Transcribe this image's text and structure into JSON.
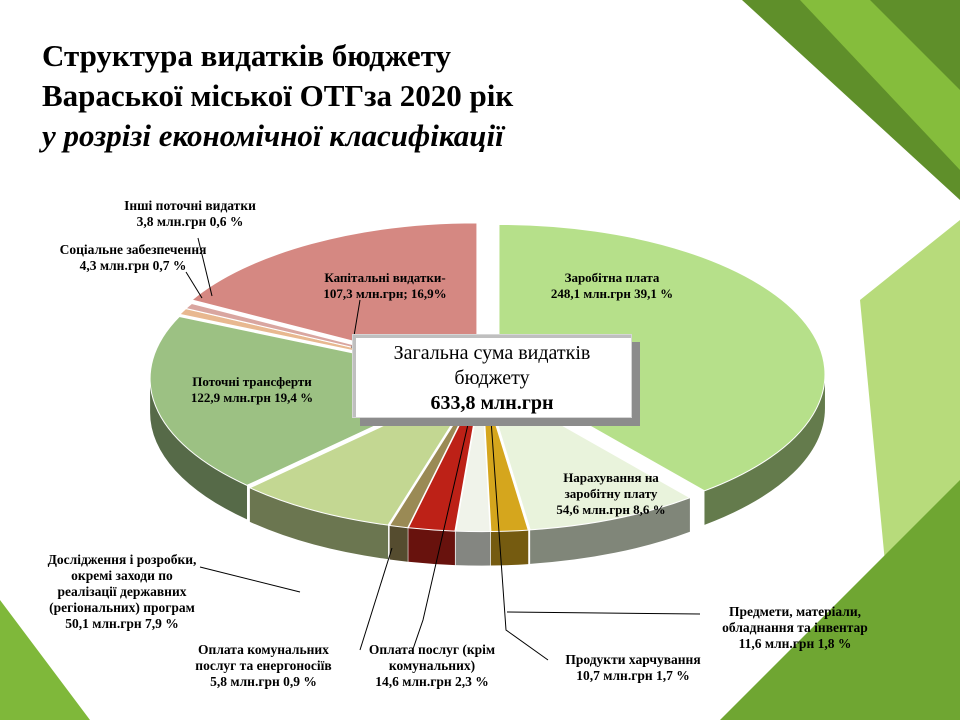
{
  "title": {
    "line1": "Структура  видатків  бюджету",
    "line2": "Вараської міської ОТГза 2020 рік",
    "line3": "у розрізі економічної класифікації"
  },
  "center": {
    "line1": "Загальна сума видатків",
    "line2": "бюджету",
    "value": "633,8 млн.грн"
  },
  "chart_data": {
    "type": "pie",
    "total": 633.8,
    "unit": "млн.грн",
    "slices": [
      {
        "name": "Заробітна  плата",
        "value": 248.1,
        "percent": 39.1,
        "color": "#b6e08a",
        "label_lines": [
          "Заробітна  плата",
          "248,1 млн.грн  39,1 %"
        ]
      },
      {
        "name": "Нарахування на заробітну плату",
        "value": 54.6,
        "percent": 8.6,
        "color": "#e9f3dc",
        "label_lines": [
          "Нарахування на",
          "заробітну плату",
          "54,6 млн.грн   8,6 %"
        ]
      },
      {
        "name": "Предмети, матеріали, обладнання та інвентар",
        "value": 11.6,
        "percent": 1.8,
        "color": "#d5a61d",
        "label_lines": [
          "Предмети, матеріали,",
          "обладнання та інвентар",
          "11,6 млн.грн  1,8 %"
        ]
      },
      {
        "name": "Продукти харчування",
        "value": 10.7,
        "percent": 1.7,
        "color": "#f0f3ea",
        "label_lines": [
          "Продукти харчування",
          "10,7 млн.грн 1,7 %"
        ]
      },
      {
        "name": "Оплата послуг (крім комунальних)",
        "value": 14.6,
        "percent": 2.3,
        "color": "#bd2117",
        "label_lines": [
          "Оплата послуг (крім",
          "комунальних)",
          "14,6 млн.грн 2,3 %"
        ]
      },
      {
        "name": "Оплата комунальних послуг та енергоносіїв",
        "value": 5.8,
        "percent": 0.9,
        "color": "#9a8a55",
        "label_lines": [
          "Оплата комунальних",
          "послуг та енергоносіїв",
          "5,8 млн.грн 0,9 %"
        ]
      },
      {
        "name": "Дослідження і розробки, окремі заходи по реалізації державних (регіональних) програм",
        "value": 50.1,
        "percent": 7.9,
        "color": "#c3d792",
        "label_lines": [
          "Дослідження і розробки,",
          "окремі заходи по",
          "реалізації  державних",
          "(регіональних) програм",
          "50,1 млн.грн 7,9 %"
        ]
      },
      {
        "name": "Поточні трансферти",
        "value": 122.9,
        "percent": 19.4,
        "color": "#9cc183",
        "label_lines": [
          "Поточні трансферти",
          "122,9 млн.грн 19,4 %"
        ]
      },
      {
        "name": "Соціальне забезпечення",
        "value": 4.3,
        "percent": 0.7,
        "color": "#e8b890",
        "label_lines": [
          "Соціальне забезпечення",
          "4,3 млн.грн 0,7 %"
        ]
      },
      {
        "name": "Інші поточні видатки",
        "value": 3.8,
        "percent": 0.6,
        "color": "#d9a6a0",
        "label_lines": [
          "Інші поточні видатки",
          "3,8 млн.грн 0,6 %"
        ]
      },
      {
        "name": "Капітальні  видатки-",
        "value": 107.3,
        "percent": 16.9,
        "color": "#d58882",
        "label_lines": [
          "Капітальні  видатки-",
          "107,3 млн.грн;     16,9%"
        ]
      }
    ]
  }
}
